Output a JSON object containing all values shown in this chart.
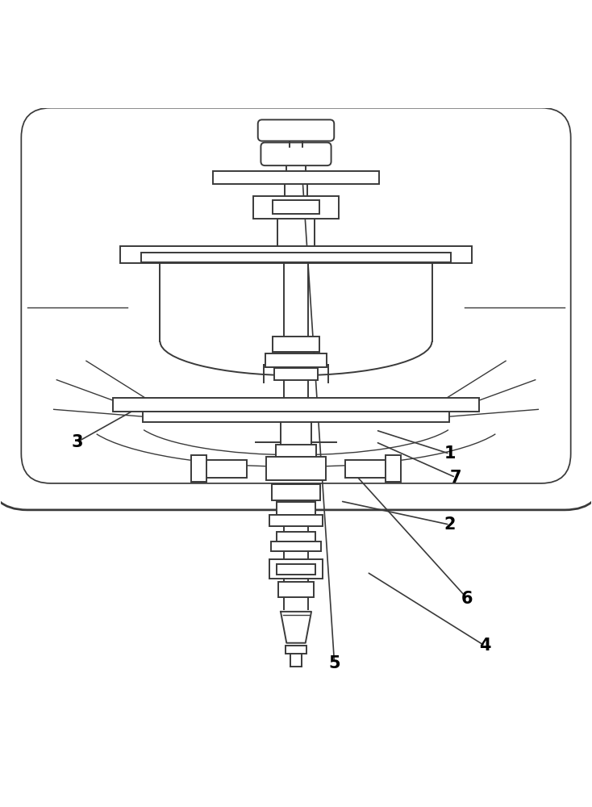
{
  "bg_color": "#ffffff",
  "line_color": "#3a3a3a",
  "line_width": 1.4,
  "label_color": "#000000",
  "figsize": [
    7.34,
    10.0
  ],
  "dpi": 100,
  "label_positions": {
    "1": {
      "text": [
        0.76,
        0.415
      ],
      "arrow_to": [
        0.635,
        0.455
      ]
    },
    "2": {
      "text": [
        0.76,
        0.295
      ],
      "arrow_to": [
        0.575,
        0.335
      ]
    },
    "3": {
      "text": [
        0.13,
        0.435
      ],
      "arrow_to": [
        0.255,
        0.505
      ]
    },
    "4": {
      "text": [
        0.82,
        0.09
      ],
      "arrow_to": [
        0.62,
        0.215
      ]
    },
    "5": {
      "text": [
        0.565,
        0.06
      ],
      "arrow_to": [
        0.51,
        0.895
      ]
    },
    "6": {
      "text": [
        0.79,
        0.17
      ],
      "arrow_to": [
        0.6,
        0.38
      ]
    },
    "7": {
      "text": [
        0.77,
        0.375
      ],
      "arrow_to": [
        0.635,
        0.435
      ]
    }
  }
}
